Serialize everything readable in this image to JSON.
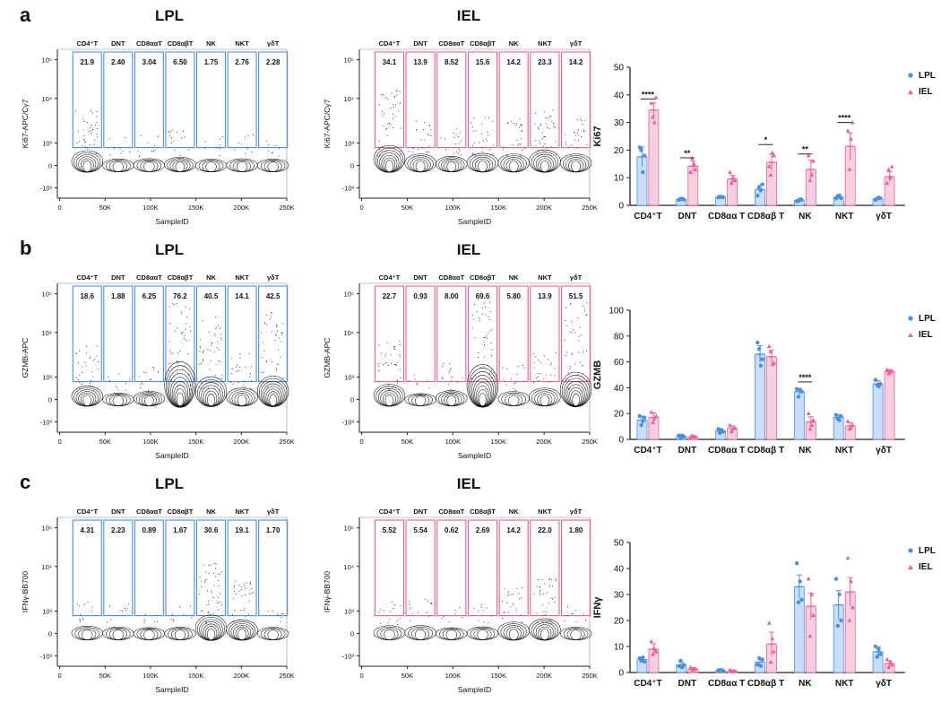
{
  "colors": {
    "lpl": "#4a8fe2",
    "iel": "#ee5f98",
    "lpl_fill": "#c8defa",
    "iel_fill": "#f9cfe0",
    "axis": "#222222",
    "contour": "#111111"
  },
  "panels": [
    {
      "letter": "a",
      "flow": [
        {
          "title": "LPL",
          "ylabel": "Ki67-APC/Cy7",
          "xlabel": "SampleID",
          "color": "lpl",
          "gate_labels": [
            "CD4⁺T",
            "DNT",
            "CD8ααT",
            "CD8αβT",
            "NK",
            "NKT",
            "γδT"
          ],
          "gate_values": [
            "21.9",
            "2.40",
            "3.04",
            "6.50",
            "1.75",
            "2.76",
            "2.28"
          ],
          "yticks": [
            "10⁵",
            "10⁴",
            "10³",
            "0",
            "-10³"
          ],
          "xticks": [
            "0",
            "50K",
            "100K",
            "150K",
            "200K",
            "250K"
          ]
        },
        {
          "title": "IEL",
          "ylabel": "Ki67-APC/Cy7",
          "xlabel": "SampleID",
          "color": "iel",
          "gate_labels": [
            "CD4⁺T",
            "DNT",
            "CD8ααT",
            "CD8αβT",
            "NK",
            "NKT",
            "γδT"
          ],
          "gate_values": [
            "34.1",
            "13.9",
            "8.52",
            "15.6",
            "14.2",
            "23.3",
            "14.2"
          ],
          "yticks": [
            "10⁵",
            "10⁴",
            "10³",
            "0",
            "-10³"
          ],
          "xticks": [
            "0",
            "50K",
            "100K",
            "150K",
            "200K",
            "250K"
          ]
        }
      ],
      "chart_data": {
        "type": "bar",
        "ylabel": "Ki67",
        "ylim": [
          0,
          50
        ],
        "yticks": [
          0,
          10,
          20,
          30,
          40,
          50
        ],
        "categories": [
          "CD4⁺T",
          "DNT",
          "CD8αα T",
          "CD8αβ T",
          "NK",
          "NKT",
          "γδT"
        ],
        "legend": [
          "LPL",
          "IEL"
        ],
        "series": [
          {
            "name": "LPL",
            "values": [
              17.6,
              2.2,
              3.0,
              5.8,
              1.8,
              3.0,
              2.4
            ],
            "errors": [
              3.5,
              0.3,
              0.2,
              1.4,
              0.4,
              0.5,
              0.4
            ],
            "points": [
              [
                21,
                20,
                12,
                18
              ],
              [
                2.0,
                2.3,
                2.4,
                2.1
              ],
              [
                2.9,
                3.1,
                3.0,
                3.0
              ],
              [
                3.5,
                6.5,
                5.5,
                7.6
              ],
              [
                1.5,
                1.6,
                2.2,
                2.0
              ],
              [
                2.5,
                3.4,
                3.6,
                2.6
              ],
              [
                2.0,
                2.4,
                2.8,
                2.6
              ]
            ]
          },
          {
            "name": "IEL",
            "values": [
              34.5,
              14.2,
              9.5,
              15.6,
              13.0,
              21.4,
              10.4
            ],
            "errors": [
              2.6,
              1.8,
              1.3,
              3.0,
              3.4,
              4.8,
              1.8
            ],
            "points": [
              [
                37,
                32,
                30,
                39
              ],
              [
                12,
                17,
                15,
                13
              ],
              [
                12,
                8,
                10,
                9
              ],
              [
                14,
                11,
                19,
                18
              ],
              [
                18,
                9,
                11,
                16
              ],
              [
                27,
                13,
                24,
                30
              ],
              [
                8,
                13,
                10,
                14
              ]
            ]
          }
        ],
        "significance": [
          {
            "category": 0,
            "label": "****",
            "y": 38.5
          },
          {
            "category": 1,
            "label": "**",
            "y": 17.2
          },
          {
            "category": 3,
            "label": "*",
            "y": 22.0
          },
          {
            "category": 4,
            "label": "**",
            "y": 18.6
          },
          {
            "category": 5,
            "label": "****",
            "y": 30.0
          }
        ]
      }
    },
    {
      "letter": "b",
      "flow": [
        {
          "title": "LPL",
          "ylabel": "GZMB-APC",
          "xlabel": "SampleID",
          "color": "lpl",
          "gate_labels": [
            "CD4⁺T",
            "DNT",
            "CD8ααT",
            "CD8αβT",
            "NK",
            "NKT",
            "γδT"
          ],
          "gate_values": [
            "18.6",
            "1.88",
            "6.25",
            "76.2",
            "40.5",
            "14.1",
            "42.5"
          ],
          "yticks": [
            "10⁵",
            "10⁴",
            "10³",
            "0",
            "-10³"
          ],
          "xticks": [
            "0",
            "50K",
            "100K",
            "150K",
            "200K",
            "250K"
          ]
        },
        {
          "title": "IEL",
          "ylabel": "GZMB-APC",
          "xlabel": "SampleID",
          "color": "iel",
          "gate_labels": [
            "CD4⁺T",
            "DNT",
            "CD8ααT",
            "CD8αβT",
            "NK",
            "NKT",
            "γδT"
          ],
          "gate_values": [
            "22.7",
            "0.93",
            "8.00",
            "69.6",
            "5.80",
            "13.9",
            "51.5"
          ],
          "yticks": [
            "10⁵",
            "10⁴",
            "10³",
            "0",
            "-10³"
          ],
          "xticks": [
            "0",
            "50K",
            "100K",
            "150K",
            "200K",
            "250K"
          ]
        }
      ],
      "chart_data": {
        "type": "bar",
        "ylabel": "GZMB",
        "ylim": [
          0,
          100
        ],
        "yticks": [
          0,
          20,
          40,
          60,
          80,
          100
        ],
        "categories": [
          "CD4⁺T",
          "DNT",
          "CD8αα T",
          "CD8αβ T",
          "NK",
          "NKT",
          "γδT"
        ],
        "legend": [
          "LPL",
          "IEL"
        ],
        "series": [
          {
            "name": "LPL",
            "values": [
              15.0,
              2.5,
              6.5,
              66.0,
              37.0,
              17.0,
              43.0
            ],
            "errors": [
              3.0,
              1.0,
              1.8,
              6.5,
              2.5,
              2.0,
              2.5
            ],
            "points": [
              [
                18,
                11,
                14,
                17
              ],
              [
                3,
                1,
                3,
                2
              ],
              [
                8,
                5,
                7,
                6
              ],
              [
                75,
                70,
                57,
                62
              ],
              [
                39,
                33,
                38,
                37
              ],
              [
                19,
                16,
                15,
                18
              ],
              [
                46,
                42,
                41,
                43
              ]
            ]
          },
          {
            "name": "IEL",
            "values": [
              17.0,
              2.0,
              8.5,
              64.0,
              13.5,
              10.5,
              52.5
            ],
            "errors": [
              3.5,
              0.8,
              2.0,
              5.0,
              4.0,
              2.5,
              1.5
            ],
            "points": [
              [
                21,
                13,
                16,
                18
              ],
              [
                1,
                3,
                2,
                2
              ],
              [
                11,
                6,
                8,
                9
              ],
              [
                72,
                68,
                58,
                59
              ],
              [
                20,
                8,
                11,
                15
              ],
              [
                14,
                8,
                9,
                11
              ],
              [
                54,
                51,
                52,
                53
              ]
            ]
          }
        ],
        "significance": [
          {
            "category": 4,
            "label": "****",
            "y": 44.5
          }
        ]
      }
    },
    {
      "letter": "c",
      "flow": [
        {
          "title": "LPL",
          "ylabel": "IFNγ-BB700",
          "xlabel": "SampleID",
          "color": "lpl",
          "gate_labels": [
            "CD4⁺T",
            "DNT",
            "CD8ααT",
            "CD8αβT",
            "NK",
            "NKT",
            "γδT"
          ],
          "gate_values": [
            "4.31",
            "2.23",
            "0.89",
            "1.67",
            "30.6",
            "19.1",
            "1.70"
          ],
          "yticks": [
            "10⁵",
            "10⁴",
            "10³",
            "0",
            "-10³"
          ],
          "xticks": [
            "0",
            "50K",
            "100K",
            "150K",
            "200K",
            "250K"
          ]
        },
        {
          "title": "IEL",
          "ylabel": "IFNγ-BB700",
          "xlabel": "SampleID",
          "color": "iel",
          "gate_labels": [
            "CD4⁺T",
            "DNT",
            "CD8ααT",
            "CD8αβT",
            "NK",
            "NKT",
            "γδT"
          ],
          "gate_values": [
            "5.52",
            "5.54",
            "0.62",
            "2.69",
            "14.2",
            "22.0",
            "1.80"
          ],
          "yticks": [
            "10⁵",
            "10⁴",
            "10³",
            "0",
            "-10³"
          ],
          "xticks": [
            "0",
            "50K",
            "100K",
            "150K",
            "200K",
            "250K"
          ]
        }
      ],
      "chart_data": {
        "type": "bar",
        "ylabel": "IFNγ",
        "ylim": [
          0,
          50
        ],
        "yticks": [
          0,
          10,
          20,
          30,
          40,
          50
        ],
        "categories": [
          "CD4⁺T",
          "DNT",
          "CD8αα T",
          "CD8αβ T",
          "NK",
          "NKT",
          "γδT"
        ],
        "legend": [
          "LPL",
          "IEL"
        ],
        "series": [
          {
            "name": "LPL",
            "values": [
              5.0,
              3.0,
              0.8,
              4.0,
              33.0,
              26.0,
              8.0
            ],
            "errors": [
              0.8,
              1.2,
              0.3,
              1.5,
              4.5,
              5.5,
              1.8
            ],
            "points": [
              [
                5.5,
                4.5,
                5.8,
                4.2
              ],
              [
                2.5,
                4.5,
                2.0,
                3.0
              ],
              [
                0.9,
                0.7,
                1.0,
                0.6
              ],
              [
                3.0,
                5.5,
                2.5,
                5.0
              ],
              [
                42,
                27,
                35,
                28
              ],
              [
                36,
                18,
                30,
                20
              ],
              [
                10,
                6,
                9,
                7
              ]
            ]
          },
          {
            "name": "IEL",
            "values": [
              9.0,
              1.3,
              0.6,
              11.0,
              25.5,
              31.0,
              3.5
            ],
            "errors": [
              2.0,
              0.6,
              0.3,
              4.5,
              5.0,
              5.5,
              1.0
            ],
            "points": [
              [
                12,
                7,
                9,
                8
              ],
              [
                2,
                1,
                1,
                1.5
              ],
              [
                1,
                0.3,
                0.6,
                0.5
              ],
              [
                19,
                4,
                13,
                8
              ],
              [
                36,
                14,
                30,
                22
              ],
              [
                44,
                20,
                35,
                25
              ],
              [
                5,
                2,
                4,
                3
              ]
            ]
          }
        ],
        "significance": []
      }
    }
  ]
}
